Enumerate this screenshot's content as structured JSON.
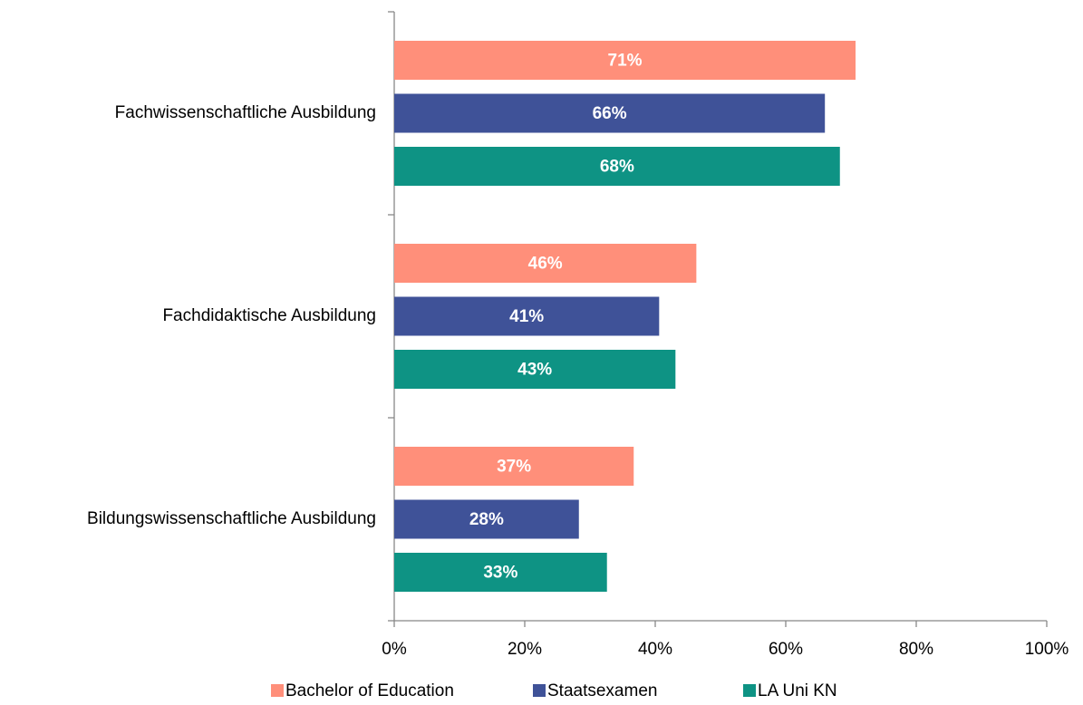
{
  "chart_data": {
    "type": "hbar",
    "categories": [
      "Fachwissenschaftliche Ausbildung",
      "Fachdidaktische Ausbildung",
      "Bildungswissenschaftliche Ausbildung"
    ],
    "series": [
      {
        "name": "Bachelor of Education",
        "color": "#ff8f7a",
        "values": [
          70.7,
          46.3,
          36.7
        ],
        "value_labels": [
          "71%",
          "46%",
          "37%"
        ]
      },
      {
        "name": "Staatsexamen",
        "color": "#3f5298",
        "values": [
          66.0,
          40.6,
          28.3
        ],
        "value_labels": [
          "66%",
          "41%",
          "28%"
        ]
      },
      {
        "name": "LA Uni KN",
        "color": "#0e9384",
        "values": [
          68.3,
          43.1,
          32.6
        ],
        "value_labels": [
          "68%",
          "43%",
          "33%"
        ]
      }
    ],
    "xlim": [
      0,
      100
    ],
    "xticks": [
      {
        "value": 0,
        "label": "0%"
      },
      {
        "value": 20,
        "label": "20%"
      },
      {
        "value": 40,
        "label": "40%"
      },
      {
        "value": 60,
        "label": "60%"
      },
      {
        "value": 80,
        "label": "80%"
      },
      {
        "value": 100,
        "label": "100%"
      }
    ],
    "legend": "bottom"
  }
}
